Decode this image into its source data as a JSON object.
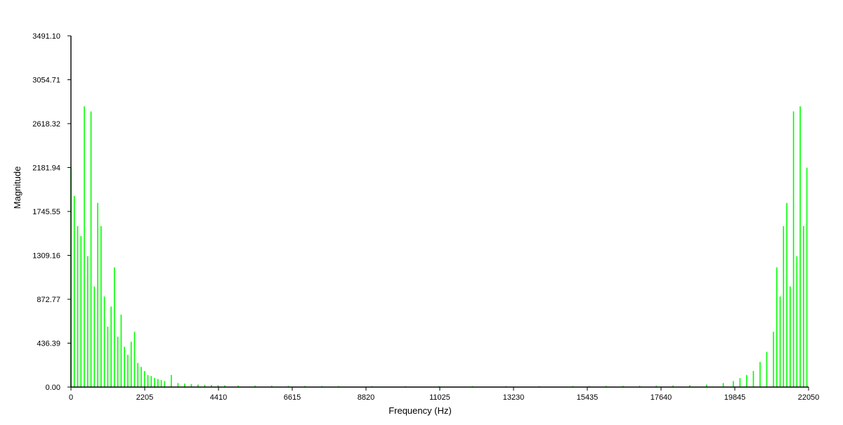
{
  "chart_data": {
    "type": "bar",
    "title": "",
    "xlabel": "Frequency (Hz)",
    "ylabel": "Magnitude",
    "xlim": [
      0,
      22050
    ],
    "ylim": [
      0,
      3491.1
    ],
    "x_ticks": [
      "0",
      "2205",
      "4410",
      "6615",
      "8820",
      "11025",
      "13230",
      "15435",
      "17640",
      "19845",
      "22050"
    ],
    "y_ticks": [
      "0.00",
      "436.39",
      "872.77",
      "1309.16",
      "1745.55",
      "2181.94",
      "2618.32",
      "3054.71",
      "3491.10"
    ],
    "grid": false,
    "legend": "none",
    "bar_color": "#00ff00",
    "series": [
      {
        "x": [
          0,
          100,
          200,
          300,
          400,
          500,
          600,
          700,
          800,
          900,
          1000,
          1100,
          1200,
          1300,
          1400,
          1500,
          1600,
          1700,
          1800,
          1900,
          2000,
          2100,
          2200,
          2300,
          2400,
          2500,
          2600,
          2700,
          2800,
          3000,
          3200,
          3400,
          3600,
          3800,
          4000,
          4200,
          4400,
          4600,
          5000,
          5500,
          6000,
          6500,
          7000,
          7500,
          8000,
          9000,
          10000,
          11000,
          12000,
          13000,
          14000,
          15000,
          15500,
          16000,
          16500,
          17000,
          17500,
          18000,
          18500,
          19000,
          19500,
          19800,
          20000,
          20200,
          20400,
          20600,
          20800,
          21000,
          21100,
          21200,
          21300,
          21400,
          21500,
          21600,
          21700,
          21800,
          21900,
          22000
        ],
        "values": [
          2180,
          1900,
          1600,
          1500,
          2790,
          1300,
          2740,
          1000,
          1830,
          1600,
          900,
          600,
          800,
          1190,
          500,
          720,
          400,
          320,
          450,
          550,
          240,
          200,
          160,
          120,
          110,
          90,
          80,
          70,
          60,
          120,
          40,
          35,
          30,
          25,
          22,
          20,
          18,
          17,
          15,
          14,
          13,
          12,
          11,
          10,
          10,
          9,
          9,
          9,
          9,
          9,
          9,
          10,
          10,
          11,
          12,
          13,
          14,
          15,
          18,
          25,
          40,
          60,
          90,
          120,
          160,
          250,
          350,
          550,
          1190,
          900,
          1600,
          1830,
          1000,
          2740,
          1300,
          2790,
          1600,
          2180
        ]
      }
    ]
  }
}
